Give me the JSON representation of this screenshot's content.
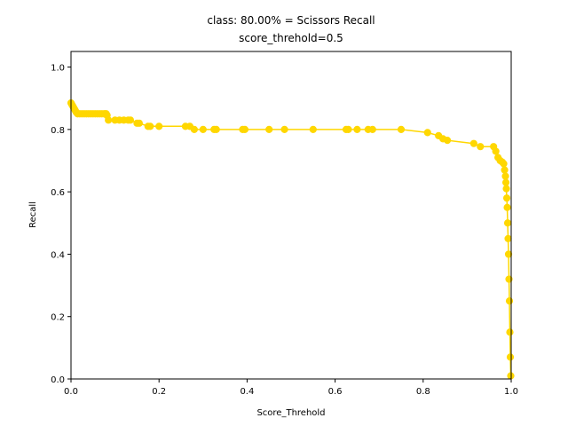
{
  "chart_data": {
    "type": "line",
    "title_line1": "class: 80.00% = Scissors Recall",
    "title_line2": "score_threhold=0.5",
    "xlabel": "Score_Threhold",
    "ylabel": "Recall",
    "xlim": [
      0.0,
      1.0
    ],
    "ylim": [
      0.0,
      1.05
    ],
    "x_ticks": [
      "0.0",
      "0.2",
      "0.4",
      "0.6",
      "0.8",
      "1.0"
    ],
    "y_ticks": [
      "0.0",
      "0.2",
      "0.4",
      "0.6",
      "0.8",
      "1.0"
    ],
    "grid": false,
    "legend": "none",
    "series": [
      {
        "color": "#FFD700",
        "marker": "circle",
        "x": [
          0.0,
          0.002,
          0.004,
          0.006,
          0.008,
          0.01,
          0.012,
          0.015,
          0.02,
          0.025,
          0.03,
          0.035,
          0.04,
          0.045,
          0.05,
          0.055,
          0.06,
          0.065,
          0.07,
          0.075,
          0.078,
          0.08,
          0.082,
          0.085,
          0.1,
          0.11,
          0.12,
          0.13,
          0.135,
          0.15,
          0.155,
          0.175,
          0.18,
          0.2,
          0.26,
          0.27,
          0.28,
          0.3,
          0.325,
          0.33,
          0.39,
          0.395,
          0.45,
          0.485,
          0.55,
          0.625,
          0.63,
          0.65,
          0.675,
          0.685,
          0.75,
          0.81,
          0.835,
          0.845,
          0.855,
          0.915,
          0.93,
          0.96,
          0.965,
          0.97,
          0.975,
          0.98,
          0.983,
          0.985,
          0.987,
          0.988,
          0.989,
          0.99,
          0.991,
          0.992,
          0.993,
          0.994,
          0.995,
          0.996,
          0.997,
          0.998,
          0.999
        ],
        "values": [
          0.885,
          0.88,
          0.875,
          0.87,
          0.865,
          0.86,
          0.855,
          0.85,
          0.85,
          0.85,
          0.85,
          0.85,
          0.85,
          0.85,
          0.85,
          0.85,
          0.85,
          0.85,
          0.85,
          0.85,
          0.85,
          0.85,
          0.845,
          0.83,
          0.83,
          0.83,
          0.83,
          0.83,
          0.83,
          0.82,
          0.82,
          0.81,
          0.81,
          0.81,
          0.81,
          0.81,
          0.8,
          0.8,
          0.8,
          0.8,
          0.8,
          0.8,
          0.8,
          0.8,
          0.8,
          0.8,
          0.8,
          0.8,
          0.8,
          0.8,
          0.8,
          0.79,
          0.78,
          0.77,
          0.765,
          0.755,
          0.745,
          0.745,
          0.73,
          0.71,
          0.7,
          0.695,
          0.69,
          0.67,
          0.65,
          0.63,
          0.61,
          0.58,
          0.55,
          0.5,
          0.45,
          0.4,
          0.32,
          0.25,
          0.15,
          0.07,
          0.01
        ]
      }
    ]
  }
}
